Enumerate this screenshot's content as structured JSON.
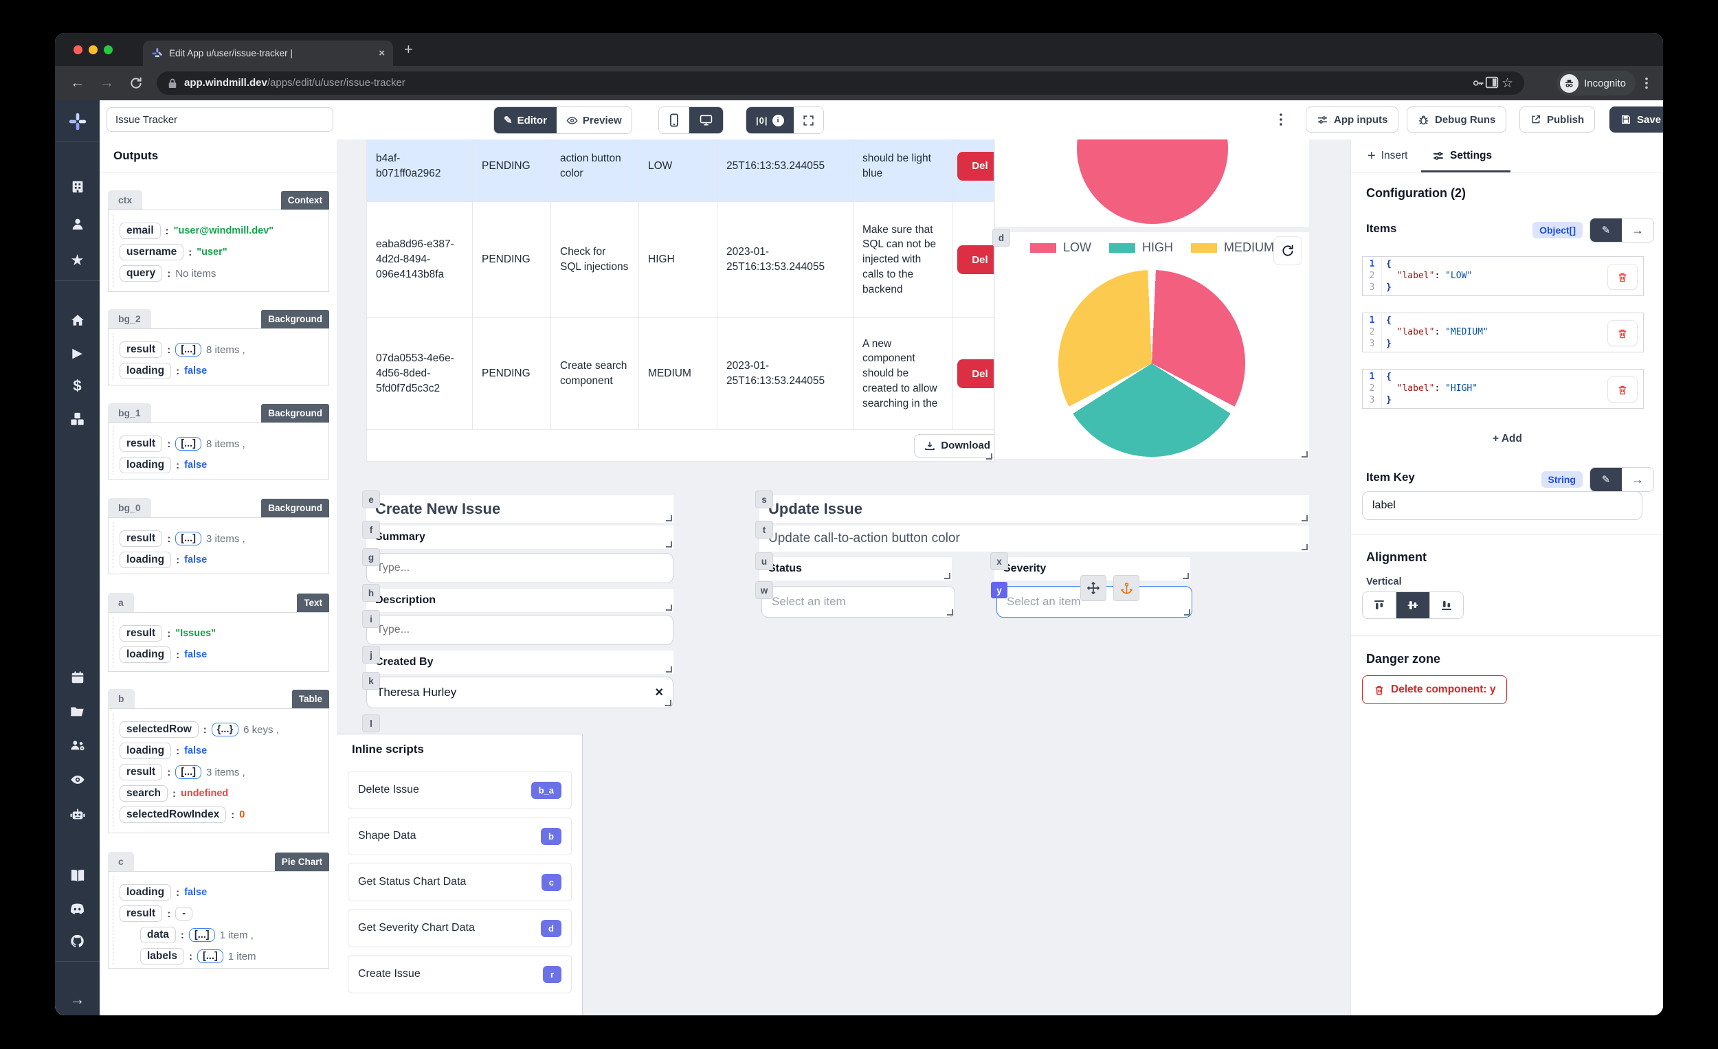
{
  "chrome": {
    "tab_title": "Edit App u/user/issue-tracker |",
    "url_domain": "app.windmill.dev",
    "url_path": "/apps/edit/u/user/issue-tracker",
    "incognito_label": "Incognito"
  },
  "app_toolbar": {
    "app_name": "Issue Tracker",
    "editor": "Editor",
    "preview": "Preview",
    "diff_label": "|0|",
    "app_inputs": "App inputs",
    "debug_runs": "Debug Runs",
    "publish": "Publish",
    "save": "Save"
  },
  "rail_icons": [
    "windmill-logo",
    "apps",
    "user",
    "star",
    "home",
    "play",
    "dollar",
    "cubes",
    "calendar",
    "folder",
    "user-group",
    "eye",
    "robot",
    "book",
    "discord",
    "github",
    "arrow-right"
  ],
  "outputs": {
    "title": "Outputs",
    "cards": [
      {
        "id": "ctx",
        "type": "Context",
        "rows": [
          {
            "key": "email",
            "segs": [
              {
                "c": "str",
                "v": "\"user@windmill.dev\""
              }
            ]
          },
          {
            "key": "username",
            "segs": [
              {
                "c": "str",
                "v": "\"user\""
              }
            ]
          },
          {
            "key": "query",
            "segs": [
              {
                "c": "count",
                "v": "No items"
              }
            ]
          }
        ]
      },
      {
        "id": "bg_2",
        "type": "Background",
        "rows": [
          {
            "key": "result",
            "segs": [
              {
                "c": "bracket",
                "v": "[...]"
              },
              {
                "c": "count",
                "v": "8 items ,"
              }
            ]
          },
          {
            "key": "loading",
            "segs": [
              {
                "c": "bool",
                "v": "false"
              }
            ]
          }
        ]
      },
      {
        "id": "bg_1",
        "type": "Background",
        "rows": [
          {
            "key": "result",
            "segs": [
              {
                "c": "bracket",
                "v": "[...]"
              },
              {
                "c": "count",
                "v": "8 items ,"
              }
            ]
          },
          {
            "key": "loading",
            "segs": [
              {
                "c": "bool",
                "v": "false"
              }
            ]
          }
        ]
      },
      {
        "id": "bg_0",
        "type": "Background",
        "rows": [
          {
            "key": "result",
            "segs": [
              {
                "c": "bracket",
                "v": "[...]"
              },
              {
                "c": "count",
                "v": "3 items ,"
              }
            ]
          },
          {
            "key": "loading",
            "segs": [
              {
                "c": "bool",
                "v": "false"
              }
            ]
          }
        ]
      },
      {
        "id": "a",
        "type": "Text",
        "rows": [
          {
            "key": "result",
            "segs": [
              {
                "c": "str",
                "v": "\"Issues\""
              }
            ]
          },
          {
            "key": "loading",
            "segs": [
              {
                "c": "bool",
                "v": "false"
              }
            ]
          }
        ]
      },
      {
        "id": "b",
        "type": "Table",
        "rows": [
          {
            "key": "selectedRow",
            "segs": [
              {
                "c": "bracket",
                "v": "{...}"
              },
              {
                "c": "count",
                "v": "6 keys ,"
              }
            ]
          },
          {
            "key": "loading",
            "segs": [
              {
                "c": "bool",
                "v": "false"
              }
            ]
          },
          {
            "key": "result",
            "segs": [
              {
                "c": "bracket",
                "v": "[...]"
              },
              {
                "c": "count",
                "v": "3 items ,"
              }
            ]
          },
          {
            "key": "search",
            "segs": [
              {
                "c": "undef",
                "v": "undefined"
              }
            ]
          },
          {
            "key": "selectedRowIndex",
            "segs": [
              {
                "c": "num",
                "v": "0"
              }
            ]
          }
        ]
      },
      {
        "id": "c",
        "type": "Pie Chart",
        "rows": [
          {
            "key": "loading",
            "segs": [
              {
                "c": "bool",
                "v": "false"
              }
            ]
          },
          {
            "key": "result",
            "segs": [
              {
                "c": "pill",
                "v": "-"
              }
            ]
          },
          {
            "key": "data",
            "indent": true,
            "segs": [
              {
                "c": "bracket",
                "v": "[...]"
              },
              {
                "c": "count",
                "v": "1 item ,"
              }
            ]
          },
          {
            "key": "labels",
            "indent": true,
            "segs": [
              {
                "c": "bracket",
                "v": "[...]"
              },
              {
                "c": "count",
                "v": "1 item"
              }
            ]
          }
        ]
      }
    ]
  },
  "canvas": {
    "badges": {
      "e": "e",
      "f": "f",
      "g": "g",
      "h": "h",
      "i": "i",
      "j": "j",
      "k": "k",
      "l": "l",
      "s": "s",
      "t": "t",
      "u": "u",
      "w": "w",
      "x": "x",
      "y": "y",
      "d": "d"
    },
    "table": {
      "rows": [
        {
          "cells": [
            "b4af-b071ff0a2962",
            "PENDING",
            "action button color",
            "LOW",
            "25T16:13:53.244055",
            "should be light blue"
          ],
          "action": "Del",
          "selected": true
        },
        {
          "cells": [
            "eaba8d96-e387-4d2d-8494-096e4143b8fa",
            "PENDING",
            "Check for SQL injections",
            "HIGH",
            "2023-01-25T16:13:53.244055",
            "Make sure that SQL can not be injected with calls to the backend"
          ],
          "action": "Del",
          "selected": false
        },
        {
          "cells": [
            "07da0553-4e6e-4d56-8ded-5fd0f7d5c3c2",
            "PENDING",
            "Create search component",
            "MEDIUM",
            "2023-01-25T16:13:53.244055",
            "A new component should be created to allow searching in the"
          ],
          "action": "Del",
          "selected": false
        }
      ],
      "download_label": "Download"
    },
    "pie": {
      "legend": [
        {
          "label": "LOW",
          "color": "#f25f7f"
        },
        {
          "label": "HIGH",
          "color": "#41beaf"
        },
        {
          "label": "MEDIUM",
          "color": "#fcca4e"
        }
      ],
      "chart_data": {
        "type": "pie",
        "labels": [
          "LOW",
          "HIGH",
          "MEDIUM"
        ],
        "values": [
          1,
          1,
          1
        ],
        "colors": [
          "#f25f7f",
          "#41beaf",
          "#fcca4e"
        ],
        "legend_position": "top"
      },
      "top_pie_chart_data": {
        "type": "pie",
        "labels": [],
        "values": [],
        "note": "single pink slice, partially visible (cut off at top of canvas)",
        "color": "#f25f7f"
      }
    },
    "create_issue": {
      "title": "Create New Issue",
      "summary_label": "Summary",
      "summary_placeholder": "Type...",
      "description_label": "Description",
      "description_placeholder": "Type...",
      "created_by_label": "Created By",
      "created_by_value": "Theresa Hurley",
      "clear_glyph": "×"
    },
    "update_issue": {
      "title": "Update Issue",
      "subtitle": "Update call-to-action button color",
      "status_label": "Status",
      "severity_label": "Severity",
      "status_placeholder": "Select an item",
      "severity_placeholder": "Select an item"
    },
    "inline_scripts": {
      "title": "Inline scripts",
      "items": [
        {
          "label": "Delete Issue",
          "badge": "b_a"
        },
        {
          "label": "Shape Data",
          "badge": "b"
        },
        {
          "label": "Get Status Chart Data",
          "badge": "c"
        },
        {
          "label": "Get Severity Chart Data",
          "badge": "d"
        },
        {
          "label": "Create Issue",
          "badge": "r"
        }
      ]
    }
  },
  "settings": {
    "insert_tab": "Insert",
    "settings_tab": "Settings",
    "configuration": "Configuration (2)",
    "items_label": "Items",
    "items_type": "Object[]",
    "editors": [
      {
        "lines": [
          "{",
          "\"label\": \"LOW\"",
          "}"
        ]
      },
      {
        "lines": [
          "{",
          "\"label\": \"MEDIUM\"",
          "}"
        ]
      },
      {
        "lines": [
          "{",
          "\"label\": \"HIGH\"",
          "}"
        ]
      }
    ],
    "add_label": "+ Add",
    "item_key_label": "Item Key",
    "item_key_type": "String",
    "item_key_value": "label",
    "alignment_title": "Alignment",
    "vertical_label": "Vertical",
    "alignment_options": [
      {
        "name": "align-top",
        "selected": false
      },
      {
        "name": "align-center",
        "selected": true
      },
      {
        "name": "align-bottom",
        "selected": false
      }
    ],
    "danger_title": "Danger zone",
    "delete_label": "Delete component: y"
  },
  "colors": {
    "accent_indigo": "#6366f1",
    "inline_badge": "#6b72e8",
    "danger_red": "#dc2626",
    "del_button": "#dc2f44",
    "selected_row": "#dbeafe",
    "dark_button": "#374151",
    "pie_low": "#f25f7f",
    "pie_high": "#41beaf",
    "pie_medium": "#fcca4e"
  }
}
